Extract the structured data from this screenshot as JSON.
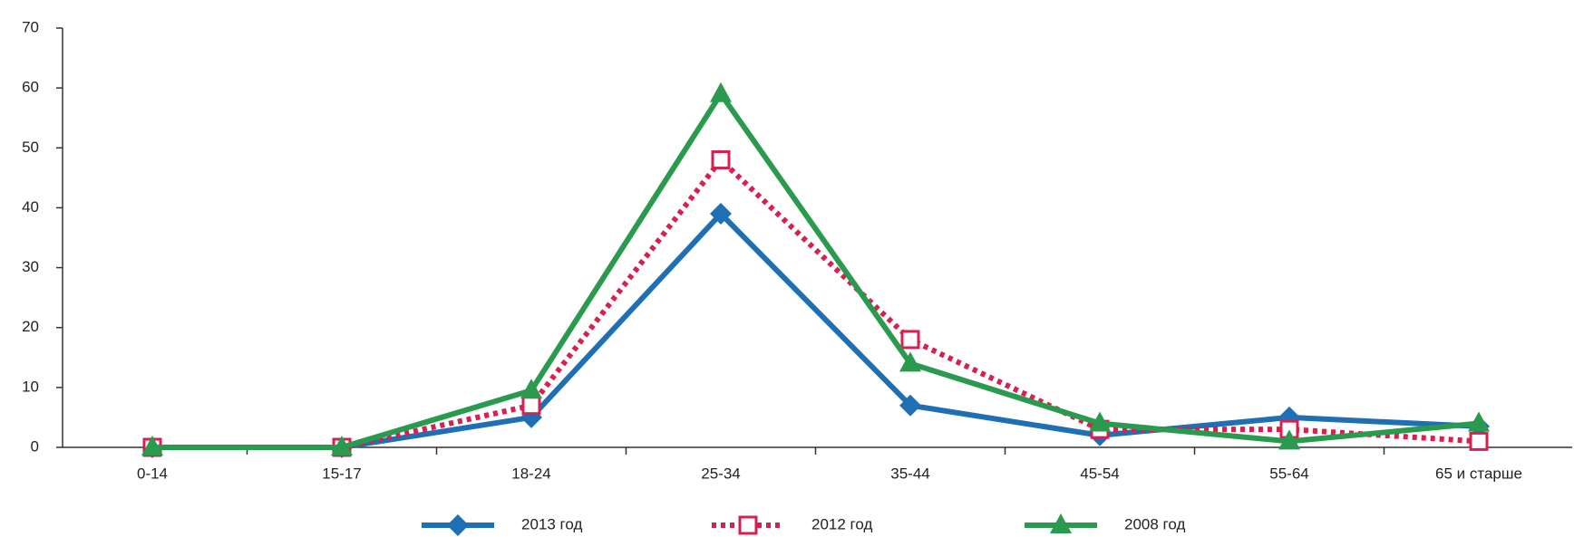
{
  "chart_data": {
    "type": "line",
    "categories": [
      "0-14",
      "15-17",
      "18-24",
      "25-34",
      "35-44",
      "45-54",
      "55-64",
      "65 и старше"
    ],
    "series": [
      {
        "name": "2013 год",
        "color": "#1f6fb5",
        "marker": "diamond",
        "line_style": "solid",
        "values": [
          0,
          0,
          5,
          39,
          7,
          2,
          5,
          3.5
        ]
      },
      {
        "name": "2012 год",
        "color": "#d6204f",
        "marker": "square-open",
        "line_style": "dotted",
        "values": [
          0,
          0,
          7,
          48,
          18,
          3,
          3,
          1
        ]
      },
      {
        "name": "2008 год",
        "color": "#2a9a4e",
        "marker": "triangle",
        "line_style": "solid",
        "values": [
          0,
          0,
          9.5,
          59,
          14,
          4,
          1,
          4
        ]
      }
    ],
    "ylim": [
      0,
      70
    ],
    "yticks": [
      0,
      10,
      20,
      30,
      40,
      50,
      60,
      70
    ]
  }
}
